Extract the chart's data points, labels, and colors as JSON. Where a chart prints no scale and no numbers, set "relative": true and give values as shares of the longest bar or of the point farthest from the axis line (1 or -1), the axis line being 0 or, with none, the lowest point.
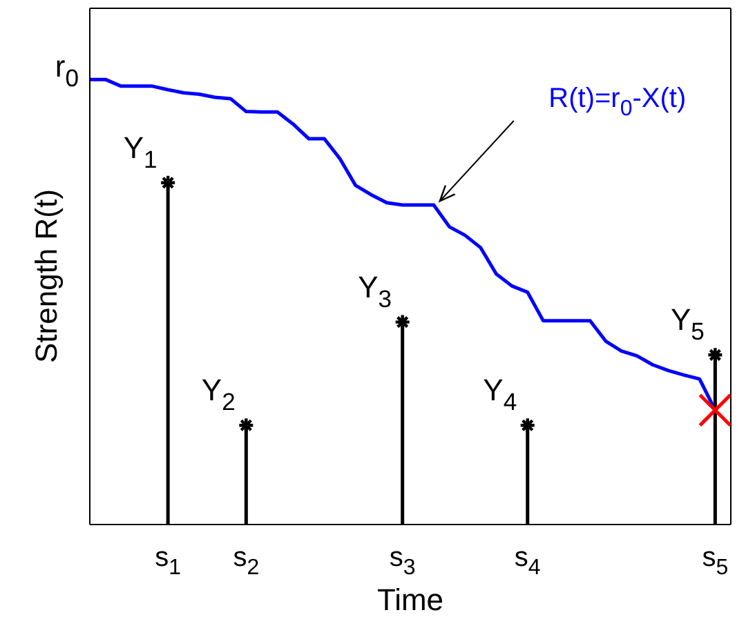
{
  "chart_data": {
    "type": "line",
    "relative": true,
    "xlabel": "Time",
    "ylabel": "Strength R(t)",
    "categories": [
      null,
      null,
      null,
      null,
      null,
      "s$_{1}$",
      null,
      null,
      null,
      null,
      "s$_{2}$",
      null,
      null,
      null,
      null,
      null,
      null,
      null,
      null,
      null,
      "s$_{3}$",
      null,
      null,
      null,
      null,
      null,
      null,
      null,
      "s$_{4}$",
      null,
      null,
      null,
      null,
      null,
      null,
      null,
      null,
      null,
      null,
      null,
      "s$_{5}$"
    ],
    "annotations": [
      "R(t)=r$_{0}$-X(t)",
      "r$_{0}$",
      {
        "text": "Y$_{1}$",
        "x": "s$_{1}$",
        "y": 0.768
      },
      {
        "text": "Y$_{2}$",
        "x": "s$_{2}$",
        "y": 0.223
      },
      {
        "text": "Y$_{3}$",
        "x": "s$_{3}$",
        "y": 0.455
      },
      {
        "text": "Y$_{4}$",
        "x": "s$_{4}$",
        "y": 0.223
      },
      {
        "text": "Y$_{5}$",
        "x": "s$_{5}$",
        "y": 0.381
      }
    ],
    "series": [
      {
        "color": "#0000ff",
        "marker": "none",
        "values": [
          1,
          1,
          0.985,
          0.985,
          0.985,
          0.977,
          0.97,
          0.967,
          0.96,
          0.957,
          0.928,
          0.927,
          0.927,
          0.9,
          0.867,
          0.867,
          0.822,
          0.762,
          0.741,
          0.723,
          0.718,
          0.718,
          0.718,
          0.669,
          0.65,
          0.622,
          0.563,
          0.536,
          0.522,
          0.458,
          0.458,
          0.458,
          0.458,
          0.412,
          0.39,
          0.379,
          0.359,
          0.346,
          0.336,
          0.327,
          0.257
        ]
      },
      {
        "type": "lollipop",
        "color": "#000000",
        "marker": "cross",
        "values": [
          null,
          null,
          null,
          null,
          null,
          0.768,
          null,
          null,
          null,
          null,
          0.223,
          null,
          null,
          null,
          null,
          null,
          null,
          null,
          null,
          null,
          0.455,
          null,
          null,
          null,
          null,
          null,
          null,
          null,
          0.223,
          null,
          null,
          null,
          null,
          null,
          null,
          null,
          null,
          null,
          null,
          null,
          0.381
        ]
      },
      {
        "type": "scatter",
        "color": "#ff0000",
        "marker": "cross",
        "values": [
          null,
          null,
          null,
          null,
          null,
          null,
          null,
          null,
          null,
          null,
          null,
          null,
          null,
          null,
          null,
          null,
          null,
          null,
          null,
          null,
          null,
          null,
          null,
          null,
          null,
          null,
          null,
          null,
          null,
          null,
          null,
          null,
          null,
          null,
          null,
          null,
          null,
          null,
          null,
          null,
          0.257
        ]
      }
    ]
  }
}
